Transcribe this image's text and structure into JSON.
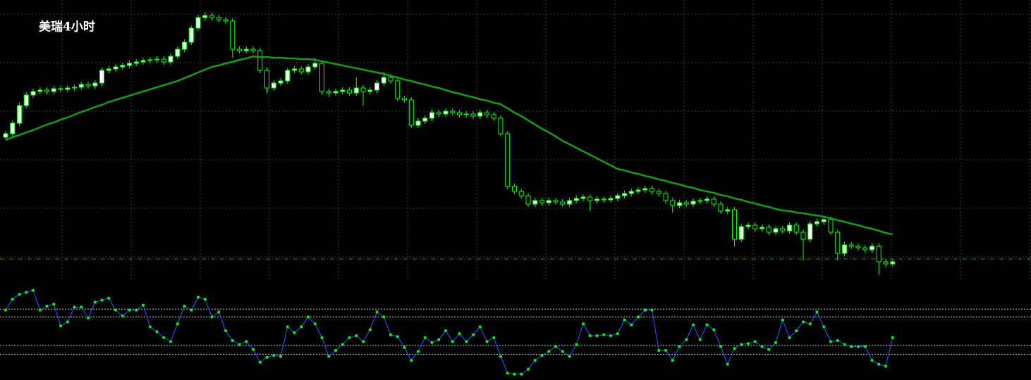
{
  "chart_data": [
    {
      "type": "candlestick",
      "title": "美瑞4小时",
      "open": [
        205,
        210,
        225,
        250,
        265,
        270,
        272,
        270,
        274,
        273,
        275,
        276,
        280,
        278,
        282,
        300,
        302,
        305,
        307,
        310,
        312,
        314,
        315,
        316,
        312,
        320,
        330,
        340,
        360,
        375,
        378,
        375,
        372,
        370,
        330,
        328,
        330,
        328,
        300,
        275,
        282,
        285,
        300,
        302,
        298,
        305,
        310,
        270,
        268,
        270,
        272,
        268,
        275,
        270,
        272,
        282,
        290,
        285,
        260,
        258,
        222,
        228,
        232,
        240,
        238,
        242,
        240,
        237,
        238,
        235,
        240,
        237,
        232,
        210,
        135,
        128,
        122,
        110,
        115,
        112,
        115,
        113,
        110,
        115,
        118,
        120,
        115,
        117,
        116,
        118,
        122,
        125,
        128,
        130,
        132,
        128,
        125,
        115,
        108,
        112,
        110,
        114,
        115,
        117,
        110,
        100,
        102,
        60,
        78,
        80,
        75,
        77,
        70,
        75,
        72,
        80,
        70,
        60,
        82,
        85,
        88,
        70,
        40,
        52,
        50,
        48,
        45,
        50,
        28,
        25
      ],
      "high": [
        214,
        229,
        254,
        269,
        274,
        276,
        276,
        278,
        278,
        279,
        280,
        284,
        284,
        286,
        304,
        306,
        309,
        311,
        314,
        316,
        318,
        319,
        320,
        320,
        324,
        334,
        344,
        364,
        379,
        382,
        382,
        379,
        376,
        374,
        334,
        334,
        334,
        332,
        304,
        286,
        289,
        304,
        306,
        306,
        309,
        318,
        314,
        274,
        274,
        276,
        276,
        290,
        279,
        276,
        286,
        298,
        295,
        289,
        264,
        262,
        232,
        236,
        244,
        244,
        246,
        246,
        244,
        242,
        242,
        244,
        244,
        241,
        236,
        214,
        139,
        132,
        126,
        119,
        119,
        119,
        119,
        117,
        119,
        122,
        124,
        124,
        121,
        121,
        122,
        126,
        129,
        132,
        134,
        136,
        136,
        132,
        129,
        119,
        116,
        116,
        118,
        119,
        121,
        121,
        114,
        106,
        106,
        82,
        84,
        84,
        81,
        81,
        79,
        79,
        84,
        84,
        74,
        86,
        89,
        92,
        92,
        74,
        56,
        56,
        54,
        52,
        54,
        54,
        32,
        32
      ],
      "low": [
        201,
        206,
        221,
        246,
        261,
        266,
        266,
        266,
        269,
        269,
        271,
        272,
        274,
        274,
        278,
        296,
        298,
        301,
        303,
        306,
        308,
        310,
        311,
        308,
        308,
        316,
        326,
        336,
        356,
        371,
        371,
        368,
        366,
        318,
        324,
        324,
        324,
        296,
        268,
        271,
        278,
        281,
        296,
        294,
        294,
        301,
        266,
        262,
        264,
        266,
        264,
        264,
        250,
        266,
        268,
        278,
        281,
        256,
        254,
        218,
        218,
        224,
        228,
        234,
        234,
        236,
        233,
        233,
        231,
        231,
        233,
        228,
        206,
        131,
        124,
        118,
        106,
        106,
        108,
        108,
        109,
        106,
        106,
        111,
        114,
        100,
        111,
        112,
        112,
        114,
        118,
        121,
        124,
        126,
        124,
        121,
        111,
        98,
        104,
        106,
        106,
        110,
        111,
        106,
        96,
        96,
        50,
        56,
        74,
        71,
        71,
        66,
        66,
        68,
        68,
        66,
        30,
        56,
        78,
        81,
        66,
        30,
        36,
        46,
        44,
        41,
        41,
        10,
        20,
        21
      ],
      "close": [
        210,
        225,
        250,
        265,
        270,
        272,
        270,
        274,
        273,
        275,
        276,
        280,
        278,
        282,
        300,
        302,
        305,
        307,
        310,
        312,
        314,
        315,
        316,
        312,
        320,
        330,
        340,
        360,
        375,
        378,
        375,
        372,
        370,
        330,
        328,
        330,
        328,
        300,
        275,
        282,
        285,
        300,
        302,
        298,
        305,
        310,
        270,
        268,
        270,
        272,
        268,
        275,
        270,
        272,
        282,
        290,
        285,
        260,
        258,
        222,
        228,
        232,
        240,
        238,
        242,
        240,
        237,
        238,
        235,
        240,
        237,
        232,
        210,
        135,
        128,
        122,
        110,
        115,
        112,
        115,
        113,
        110,
        115,
        118,
        120,
        115,
        117,
        116,
        118,
        122,
        125,
        128,
        130,
        132,
        128,
        125,
        115,
        108,
        112,
        110,
        114,
        115,
        117,
        110,
        100,
        102,
        60,
        78,
        80,
        75,
        77,
        70,
        75,
        72,
        80,
        70,
        60,
        82,
        85,
        88,
        70,
        40,
        52,
        50,
        48,
        45,
        50,
        28,
        25,
        28
      ],
      "up_color": "#ffffff",
      "down_color": "#000000",
      "candle_color": "#00ff00",
      "ma": {
        "color": "#1a9a1a",
        "values": [
          201,
          205,
          208,
          212,
          215,
          219,
          223,
          226,
          230,
          233,
          237,
          241,
          244,
          248,
          251,
          255,
          258,
          261,
          264,
          267,
          270,
          273,
          276,
          279,
          282,
          285,
          289,
          293,
          297,
          301,
          305,
          307,
          310,
          312,
          315,
          317,
          320,
          319,
          319,
          318,
          318,
          317,
          317,
          316,
          316,
          315,
          313,
          311,
          309,
          307,
          305,
          303,
          301,
          299,
          297,
          295,
          292,
          290,
          287,
          285,
          282,
          280,
          277,
          275,
          272,
          269,
          267,
          264,
          262,
          259,
          257,
          254,
          252,
          246,
          240,
          235,
          229,
          223,
          217,
          212,
          206,
          200,
          195,
          190,
          185,
          180,
          175,
          170,
          165,
          160,
          158,
          155,
          153,
          150,
          148,
          145,
          143,
          140,
          138,
          135,
          133,
          130,
          128,
          126,
          123,
          121,
          118,
          116,
          113,
          111,
          108,
          106,
          103,
          101,
          100,
          98,
          97,
          95,
          94,
          92,
          90,
          87,
          85,
          82,
          80,
          77,
          75,
          72,
          69,
          67
        ]
      },
      "price_line": 32,
      "price_line_color": "#1a9a1a",
      "ylim": [
        0,
        400
      ],
      "grid": true
    },
    {
      "type": "line",
      "values": [
        71,
        82,
        87,
        89,
        91,
        71,
        75,
        77,
        55,
        59,
        74,
        74,
        63,
        79,
        81,
        83,
        71,
        65,
        71,
        71,
        76,
        54,
        49,
        43,
        39,
        57,
        75,
        71,
        84,
        82,
        64,
        69,
        50,
        40,
        36,
        39,
        31,
        18,
        23,
        25,
        24,
        54,
        48,
        54,
        64,
        57,
        43,
        24,
        30,
        36,
        43,
        45,
        39,
        51,
        69,
        64,
        46,
        44,
        33,
        20,
        29,
        43,
        38,
        41,
        50,
        39,
        47,
        39,
        46,
        54,
        39,
        43,
        24,
        7,
        6,
        6,
        11,
        20,
        25,
        29,
        34,
        29,
        24,
        36,
        57,
        45,
        45,
        46,
        45,
        47,
        61,
        56,
        64,
        71,
        71,
        30,
        30,
        20,
        34,
        41,
        56,
        41,
        56,
        51,
        34,
        16,
        32,
        36,
        37,
        39,
        34,
        31,
        38,
        61,
        43,
        50,
        59,
        57,
        69,
        54,
        39,
        40,
        36,
        34,
        34,
        34,
        20,
        16,
        14,
        43
      ],
      "color": "#2e5bff",
      "marker_color": "#00ff00",
      "levels": [
        72,
        64,
        35,
        26
      ],
      "ylim": [
        0,
        100
      ]
    }
  ]
}
